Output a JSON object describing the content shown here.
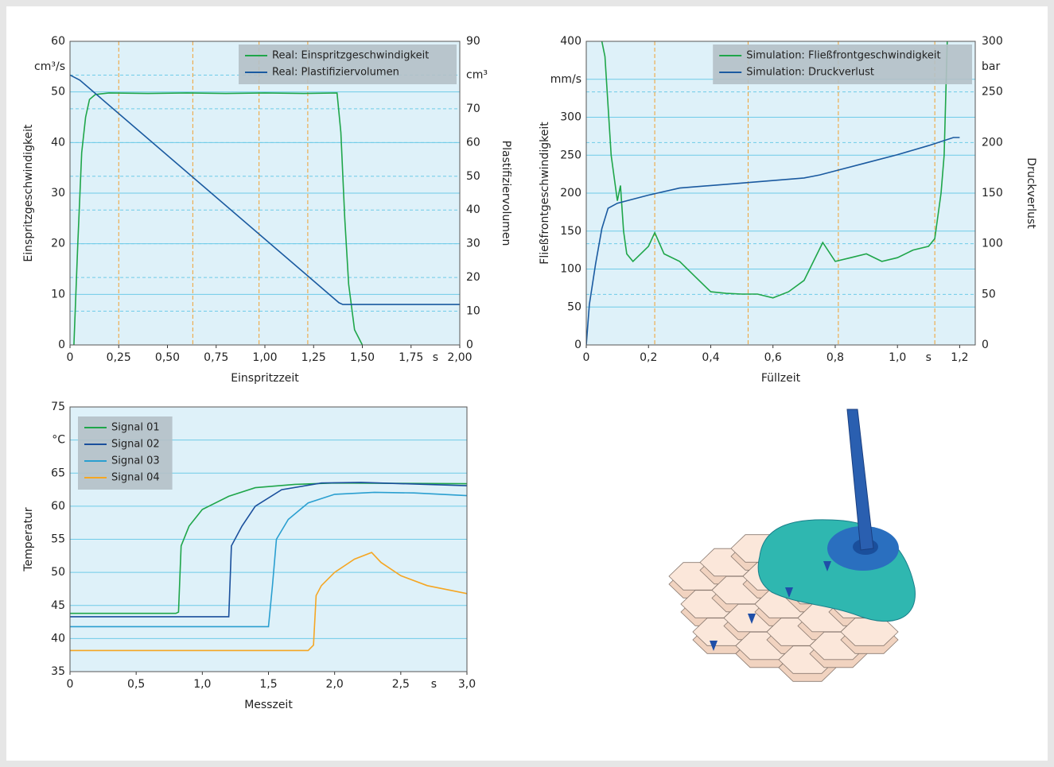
{
  "chart_data": [
    {
      "type": "line",
      "x_label": "Einspritzzeit",
      "y_label": "Einspritzgeschwindigkeit",
      "y2_label": "Plastifiziervolumen",
      "x_unit": "s",
      "y_unit": "cm³/s",
      "xlim": [
        0,
        2
      ],
      "xticks": [
        0,
        {
          "value": 0.25,
          "label": "0,25"
        },
        {
          "value": 0.5,
          "label": "0,50"
        },
        {
          "value": 0.75,
          "label": "0,75"
        },
        {
          "value": 1,
          "label": "1,00"
        },
        {
          "value": 1.25,
          "label": "1,25"
        },
        {
          "value": 1.5,
          "label": "1,50"
        },
        {
          "value": 1.75,
          "label": "1,75"
        },
        {
          "value": 2,
          "label": "2,00"
        }
      ],
      "ylim": [
        0,
        60
      ],
      "yticks": [
        0,
        10,
        20,
        30,
        40,
        50,
        60
      ],
      "y2lim": [
        0,
        90
      ],
      "y2ticks": [
        0,
        10,
        20,
        30,
        40,
        50,
        60,
        70,
        {
          "value": 80,
          "label": "cm³"
        },
        90
      ],
      "x_markers": [
        0.25,
        0.63,
        0.97,
        1.22
      ],
      "grid": true,
      "legend": "upper right",
      "series": [
        {
          "name": "Real: Einspritzgeschwindigkeit",
          "color": "#1fa64a",
          "x": [
            0.02,
            0.04,
            0.06,
            0.08,
            0.1,
            0.13,
            0.2,
            0.4,
            0.6,
            0.8,
            1.0,
            1.2,
            1.37,
            1.39,
            1.41,
            1.43,
            1.46,
            1.5
          ],
          "values": [
            0,
            20,
            38,
            45,
            48.5,
            49.5,
            49.8,
            49.7,
            49.8,
            49.7,
            49.8,
            49.7,
            49.8,
            42,
            25,
            12,
            3,
            0
          ]
        },
        {
          "name": "Real: Plastifiziervolumen",
          "color": "#1a5aa0",
          "axis": "y2",
          "x": [
            0,
            0.05,
            1.35,
            1.38,
            1.4,
            2.0
          ],
          "values": [
            80,
            78.5,
            14,
            12.5,
            12,
            12
          ]
        }
      ]
    },
    {
      "type": "line",
      "x_label": "Füllzeit",
      "y_label": "Fließfrontgeschwindigkeit",
      "y2_label": "Druckverlust",
      "x_unit": "s",
      "y2_unit": "bar",
      "xlim": [
        0,
        1.25
      ],
      "xticks": [
        0,
        {
          "value": 0.2,
          "label": "0,2"
        },
        {
          "value": 0.4,
          "label": "0,4"
        },
        {
          "value": 0.6,
          "label": "0,6"
        },
        {
          "value": 0.8,
          "label": "0,8"
        },
        {
          "value": 1.0,
          "label": "1,0"
        },
        {
          "value": 1.2,
          "label": "1,2"
        }
      ],
      "ylim": [
        0,
        400
      ],
      "yticks": [
        0,
        50,
        100,
        150,
        200,
        250,
        300,
        {
          "value": 350,
          "label": "mm/s"
        },
        400
      ],
      "y2lim": [
        0,
        300
      ],
      "y2ticks": [
        0,
        50,
        100,
        150,
        200,
        250,
        300
      ],
      "x_markers": [
        0.22,
        0.52,
        0.81,
        1.12
      ],
      "grid": true,
      "legend": "upper right",
      "series": [
        {
          "name": "Simulation: Fließfrontgeschwindigkeit",
          "color": "#1fa64a",
          "x": [
            0.05,
            0.06,
            0.08,
            0.1,
            0.11,
            0.12,
            0.13,
            0.15,
            0.2,
            0.22,
            0.25,
            0.3,
            0.35,
            0.4,
            0.45,
            0.5,
            0.55,
            0.6,
            0.65,
            0.7,
            0.73,
            0.76,
            0.8,
            0.85,
            0.9,
            0.95,
            1.0,
            1.05,
            1.1,
            1.12,
            1.14,
            1.15,
            1.16
          ],
          "values": [
            400,
            380,
            250,
            190,
            210,
            150,
            120,
            110,
            130,
            148,
            120,
            110,
            90,
            70,
            68,
            67,
            67,
            62,
            70,
            85,
            110,
            135,
            110,
            115,
            120,
            110,
            115,
            125,
            130,
            140,
            200,
            250,
            400
          ]
        },
        {
          "name": "Simulation: Druckverlust",
          "color": "#1a5aa0",
          "axis": "y2",
          "x": [
            0,
            0.01,
            0.03,
            0.05,
            0.07,
            0.1,
            0.2,
            0.3,
            0.5,
            0.7,
            0.75,
            0.8,
            0.9,
            1.0,
            1.1,
            1.18,
            1.2
          ],
          "values": [
            0,
            40,
            80,
            115,
            135,
            140,
            148,
            155,
            160,
            165,
            168,
            172,
            180,
            188,
            197,
            205,
            205
          ]
        }
      ]
    },
    {
      "type": "line",
      "x_label": "Messzeit",
      "y_label": "Temperatur",
      "x_unit": "s",
      "xlim": [
        0,
        3
      ],
      "xticks": [
        0,
        {
          "value": 0.5,
          "label": "0,5"
        },
        {
          "value": 1,
          "label": "1,0"
        },
        {
          "value": 1.5,
          "label": "1,5"
        },
        {
          "value": 2,
          "label": "2,0"
        },
        {
          "value": 2.5,
          "label": "2,5"
        },
        {
          "value": 3,
          "label": "3,0"
        }
      ],
      "ylim": [
        35,
        75
      ],
      "yticks": [
        35,
        40,
        45,
        50,
        55,
        60,
        65,
        {
          "value": 70,
          "label": "°C"
        },
        75
      ],
      "grid": true,
      "legend": "upper left",
      "series": [
        {
          "name": "Signal 01",
          "color": "#1fa64a",
          "x": [
            0,
            0.8,
            0.82,
            0.84,
            0.9,
            1.0,
            1.2,
            1.4,
            1.7,
            2.0,
            3.0
          ],
          "values": [
            43.8,
            43.8,
            44,
            54,
            57,
            59.5,
            61.5,
            62.8,
            63.3,
            63.5,
            63.4
          ]
        },
        {
          "name": "Signal 02",
          "color": "#1a4f9c",
          "x": [
            0,
            1.2,
            1.22,
            1.3,
            1.4,
            1.6,
            1.9,
            2.2,
            3.0
          ],
          "values": [
            43.3,
            43.3,
            54,
            57,
            60,
            62.5,
            63.5,
            63.6,
            63.1
          ]
        },
        {
          "name": "Signal 03",
          "color": "#2a9fd0",
          "x": [
            0,
            1.5,
            1.53,
            1.56,
            1.65,
            1.8,
            2.0,
            2.3,
            2.6,
            3.0
          ],
          "values": [
            41.8,
            41.8,
            48,
            55,
            58,
            60.5,
            61.8,
            62.1,
            62,
            61.6
          ]
        },
        {
          "name": "Signal 04",
          "color": "#f5a623",
          "x": [
            0,
            1.8,
            1.84,
            1.86,
            1.9,
            2.0,
            2.15,
            2.28,
            2.35,
            2.5,
            2.7,
            3.0
          ],
          "values": [
            38.2,
            38.2,
            39,
            46.5,
            48,
            50,
            52,
            53,
            51.5,
            49.5,
            48,
            46.8
          ]
        }
      ]
    }
  ]
}
